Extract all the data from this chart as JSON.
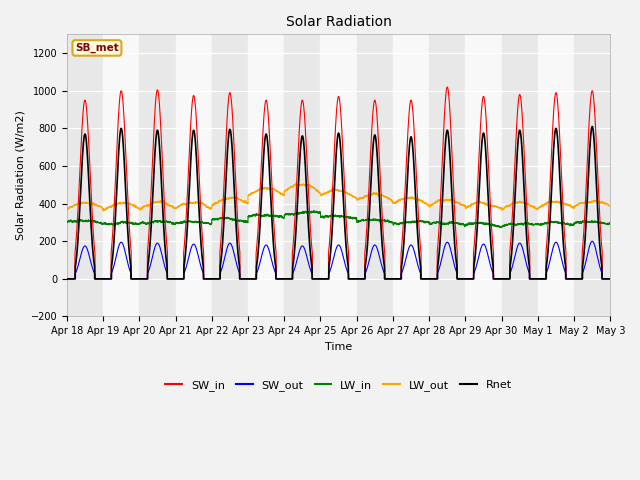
{
  "title": "Solar Radiation",
  "xlabel": "Time",
  "ylabel": "Solar Radiation (W/m2)",
  "ylim": [
    -200,
    1300
  ],
  "yticks": [
    -200,
    0,
    200,
    400,
    600,
    800,
    1000,
    1200
  ],
  "background_color": "#f2f2f2",
  "plot_bg_color": "#ffffff",
  "station_label": "SB_met",
  "legend_entries": [
    "SW_in",
    "SW_out",
    "LW_in",
    "LW_out",
    "Rnet"
  ],
  "line_colors": [
    "red",
    "blue",
    "green",
    "orange",
    "black"
  ],
  "n_days": 15,
  "date_labels": [
    "Apr 18",
    "Apr 19",
    "Apr 20",
    "Apr 21",
    "Apr 22",
    "Apr 23",
    "Apr 24",
    "Apr 25",
    "Apr 26",
    "Apr 27",
    "Apr 28",
    "Apr 29",
    "Apr 30",
    "May 1",
    "May 2",
    "May 3"
  ],
  "points_per_day": 288,
  "sw_in_peak": [
    950,
    1000,
    1005,
    975,
    990,
    950,
    950,
    970,
    950,
    950,
    1020,
    970,
    980,
    990,
    1000
  ],
  "sw_out_peak": [
    175,
    195,
    190,
    185,
    190,
    180,
    175,
    180,
    180,
    180,
    195,
    185,
    190,
    195,
    200
  ],
  "lw_in_base": [
    300,
    290,
    295,
    295,
    310,
    330,
    345,
    325,
    305,
    295,
    290,
    285,
    285,
    290,
    295
  ],
  "lw_out_base": [
    370,
    368,
    372,
    372,
    395,
    445,
    465,
    435,
    415,
    395,
    385,
    370,
    370,
    375,
    380
  ],
  "rnet_peak": [
    770,
    800,
    790,
    790,
    795,
    770,
    760,
    775,
    765,
    755,
    790,
    775,
    790,
    800,
    810
  ],
  "band_color_even": "#e8e8e8",
  "band_color_odd": "#f8f8f8"
}
